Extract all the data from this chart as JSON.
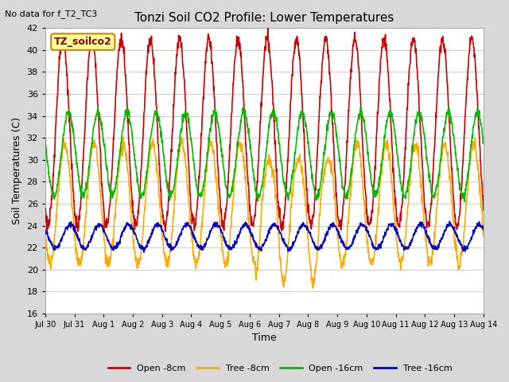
{
  "title": "Tonzi Soil CO2 Profile: Lower Temperatures",
  "subtitle": "No data for f_T2_TC3",
  "xlabel": "Time",
  "ylabel": "Soil Temperatures (C)",
  "ylim": [
    16,
    42
  ],
  "yticks": [
    16,
    18,
    20,
    22,
    24,
    26,
    28,
    30,
    32,
    34,
    36,
    38,
    40,
    42
  ],
  "fig_bg_color": "#d8d8d8",
  "plot_bg_color": "#ffffff",
  "grid_color": "#cccccc",
  "colors": {
    "open_8cm": "#cc0000",
    "tree_8cm": "#ffaa00",
    "open_16cm": "#00bb00",
    "tree_16cm": "#0000cc"
  },
  "legend_box_text": "TZ_soilco2",
  "legend_box_facecolor": "#ffff99",
  "legend_box_edgecolor": "#cc8800",
  "x_tick_labels": [
    "Jul 30",
    "Jul 31",
    "Aug 1",
    "Aug 2",
    "Aug 3",
    "Aug 4",
    "Aug 5",
    "Aug 6",
    "Aug 7",
    "Aug 8",
    "Aug 9",
    "Aug 10",
    "Aug 11",
    "Aug 12",
    "Aug 13",
    "Aug 14"
  ],
  "num_days": 15.0,
  "samples_per_day": 96,
  "open_8cm": {
    "mean": 32.5,
    "amp": 8.5,
    "phase": 0.35,
    "noise": 0.3
  },
  "tree_8cm": {
    "mean": 26.0,
    "amp": 5.5,
    "phase": 0.42,
    "noise": 0.3
  },
  "open_16cm": {
    "mean": 30.5,
    "amp": 3.8,
    "phase": 0.55,
    "noise": 0.2
  },
  "tree_16cm": {
    "mean": 23.0,
    "amp": 1.1,
    "phase": 0.6,
    "noise": 0.12
  },
  "legend_entries": [
    "Open -8cm",
    "Tree -8cm",
    "Open -16cm",
    "Tree -16cm"
  ]
}
